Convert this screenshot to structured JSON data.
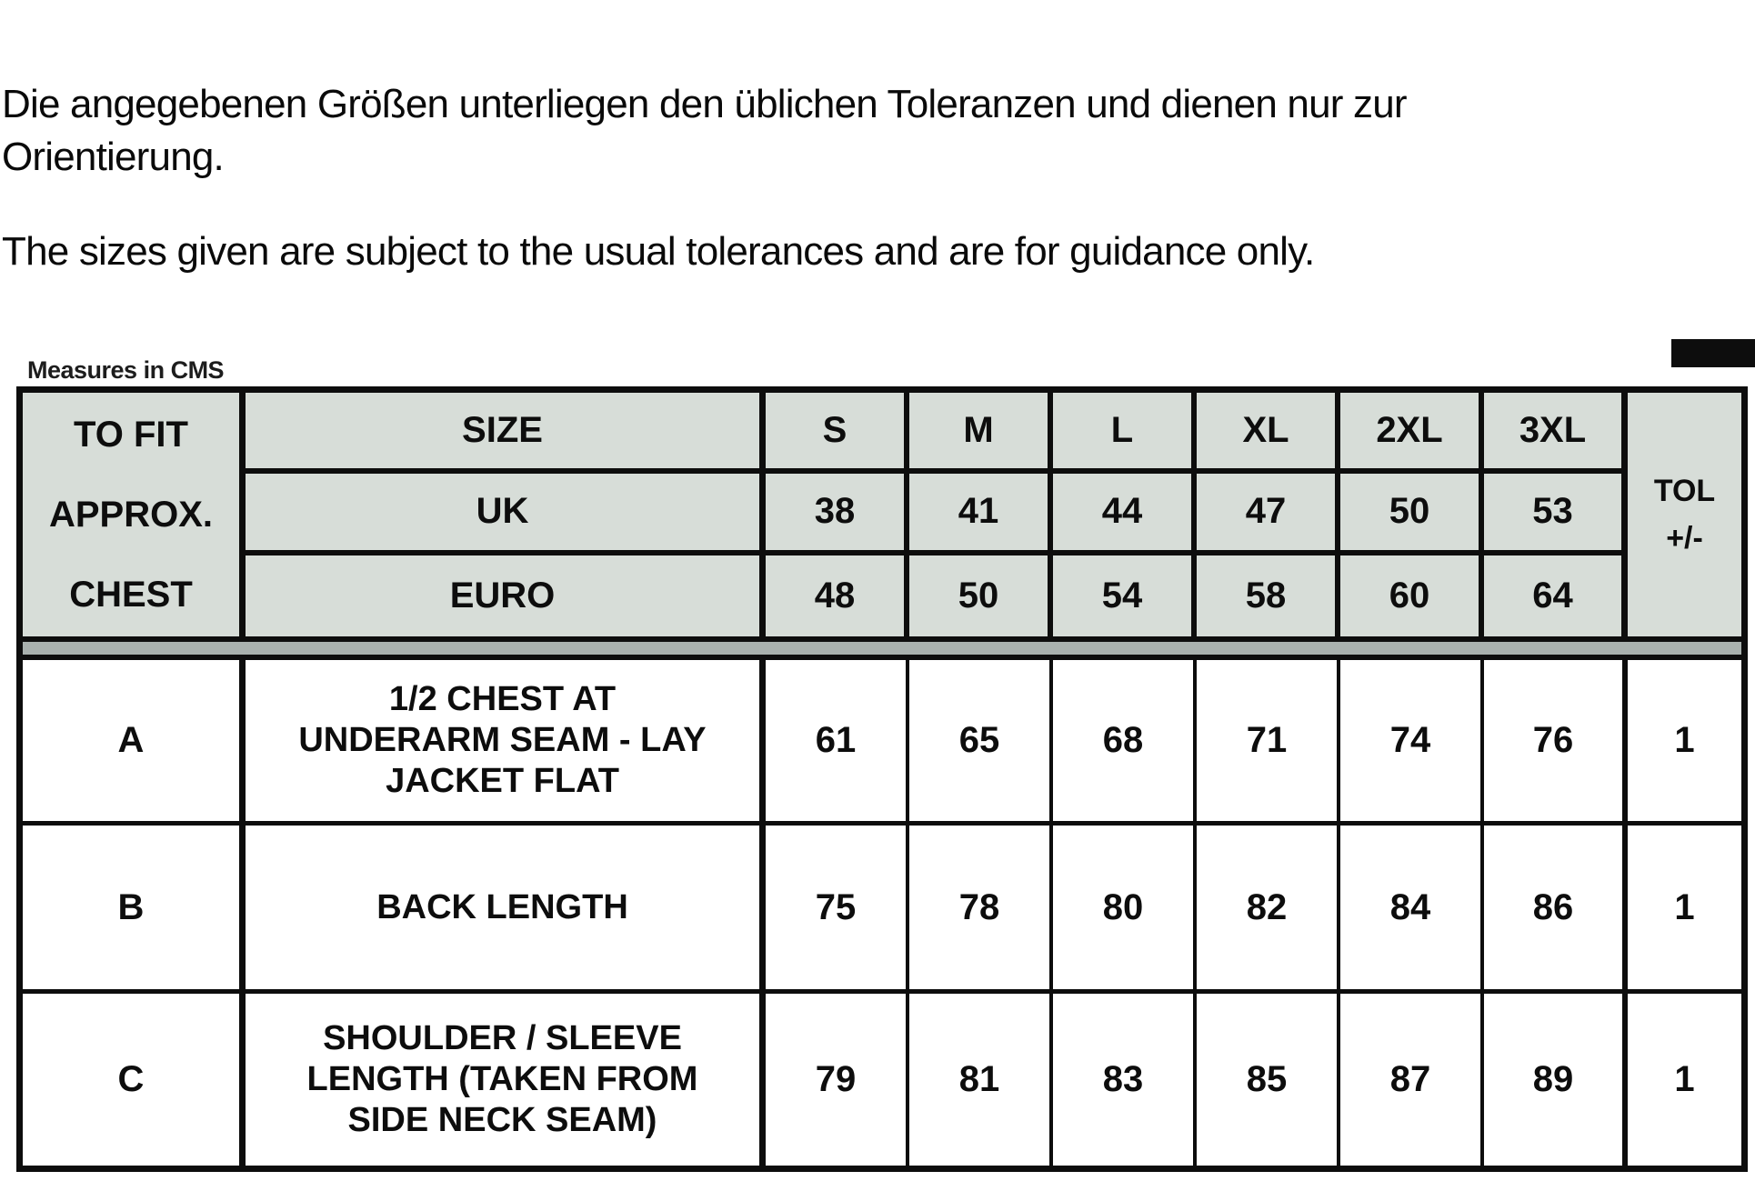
{
  "intro": {
    "german_line1": "Die angegebenen Größen unterliegen den üblichen Toleranzen und dienen nur zur",
    "german_line2": "Orientierung.",
    "english": "The sizes given are subject to the usual tolerances and are for guidance only."
  },
  "table": {
    "caption": "Measures in CMS",
    "corner_lines": [
      "TO FIT",
      "APPROX.",
      "CHEST"
    ],
    "tol_lines": [
      "TOL",
      "+/-"
    ],
    "header_rows": [
      {
        "label": "SIZE",
        "values": [
          "S",
          "M",
          "L",
          "XL",
          "2XL",
          "3XL"
        ]
      },
      {
        "label": "UK",
        "values": [
          "38",
          "41",
          "44",
          "47",
          "50",
          "53"
        ]
      },
      {
        "label": "EURO",
        "values": [
          "48",
          "50",
          "54",
          "58",
          "60",
          "64"
        ]
      }
    ],
    "body_rows": [
      {
        "key": "A",
        "desc_lines": [
          "1/2 CHEST AT",
          "UNDERARM SEAM - LAY",
          "JACKET FLAT"
        ],
        "values": [
          "61",
          "65",
          "68",
          "71",
          "74",
          "76"
        ],
        "tol": "1"
      },
      {
        "key": "B",
        "desc_lines": [
          "BACK LENGTH"
        ],
        "values": [
          "75",
          "78",
          "80",
          "82",
          "84",
          "86"
        ],
        "tol": "1"
      },
      {
        "key": "C",
        "desc_lines": [
          "SHOULDER / SLEEVE",
          "LENGTH (TAKEN FROM",
          "SIDE NECK SEAM)"
        ],
        "values": [
          "79",
          "81",
          "83",
          "85",
          "87",
          "89"
        ],
        "tol": "1"
      }
    ],
    "colors": {
      "header_bg": "#d7ddd8",
      "separator_gray": "#a9b1ae",
      "border": "#0d0d0d"
    }
  }
}
